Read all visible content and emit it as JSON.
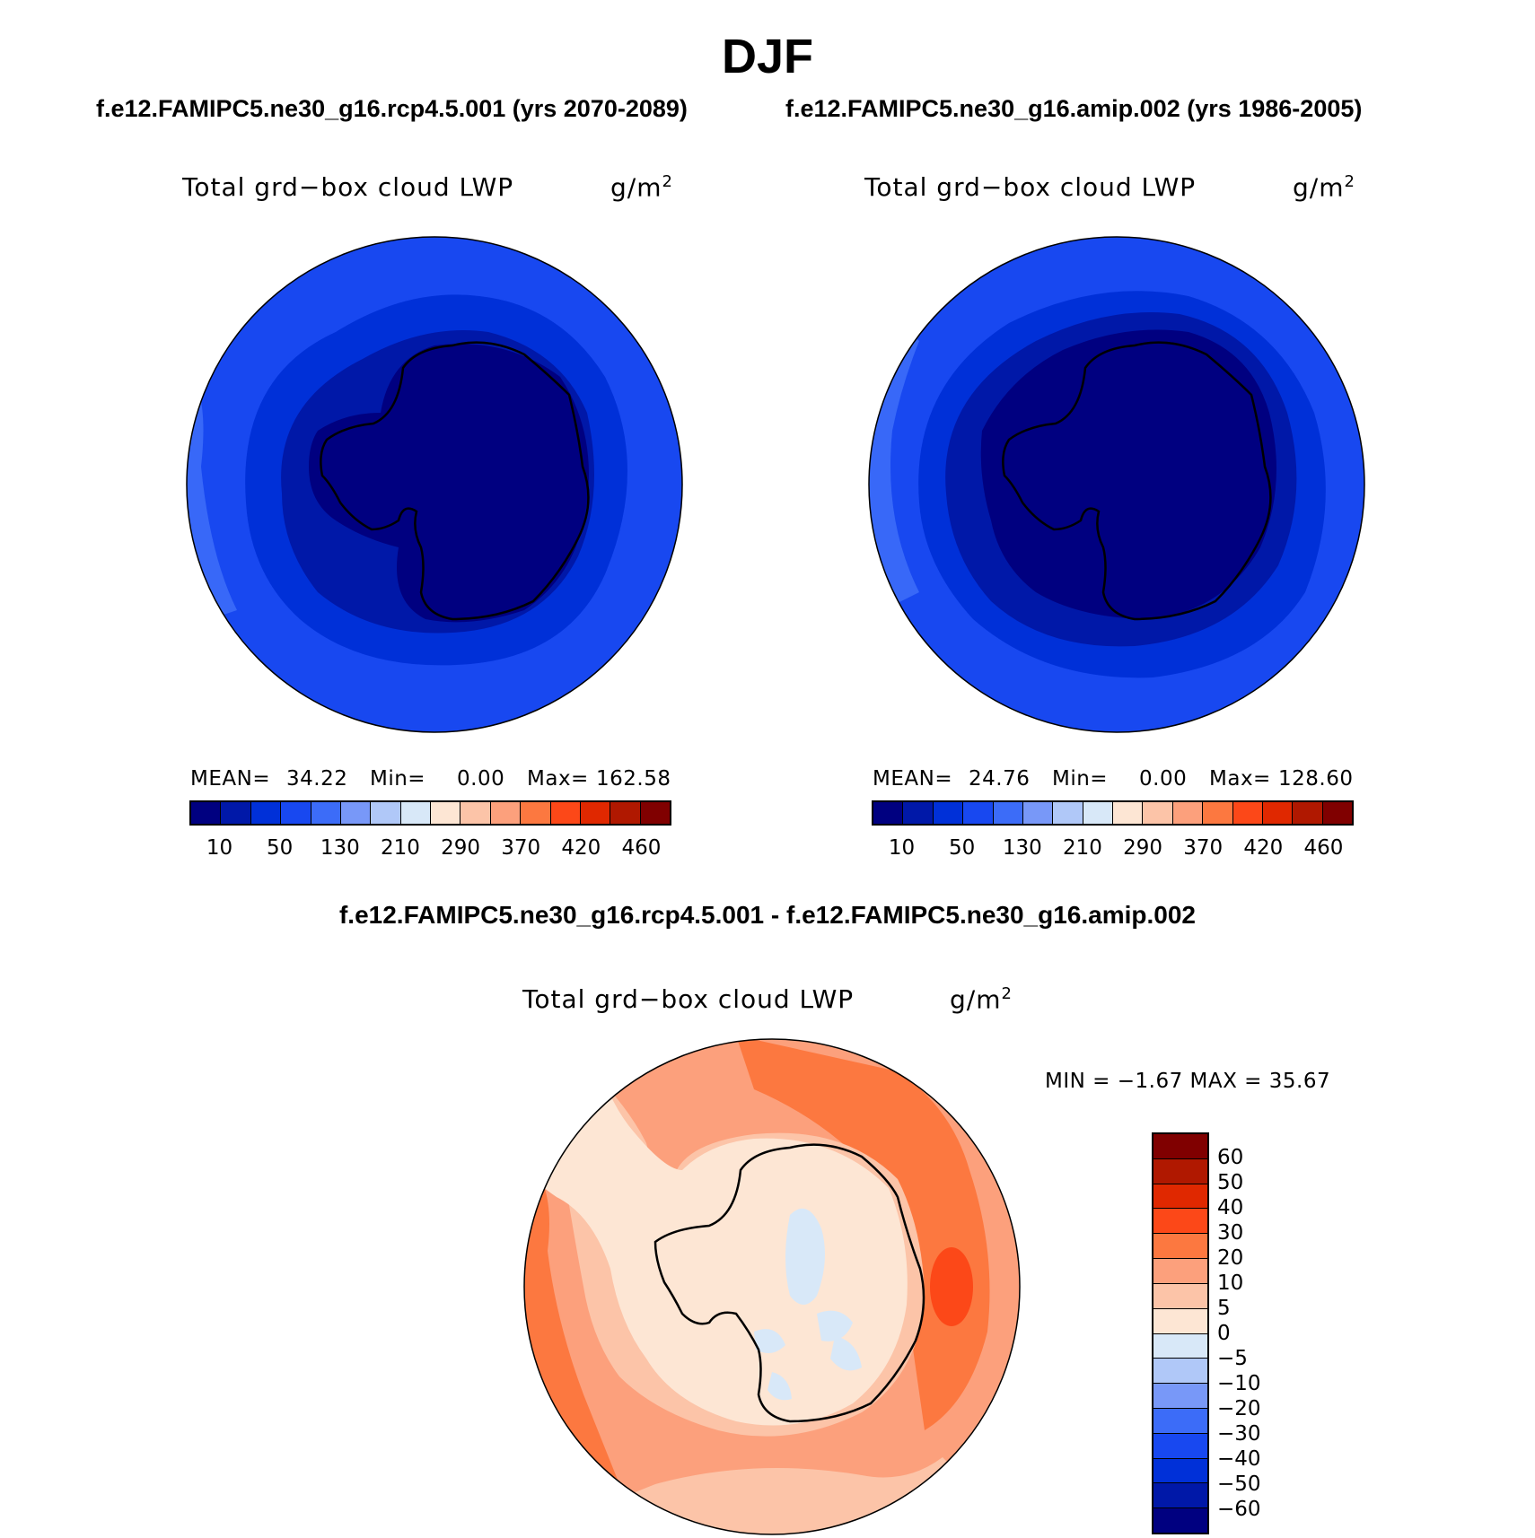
{
  "figure": {
    "title": "DJF",
    "case_left": "f.e12.FAMIPC5.ne30_g16.rcp4.5.001 (yrs 2070-2089)",
    "case_right": "f.e12.FAMIPC5.ne30_g16.amip.002 (yrs 1986-2005)",
    "diff_title": "f.e12.FAMIPC5.ne30_g16.rcp4.5.001 - f.e12.FAMIPC5.ne30_g16.amip.002"
  },
  "panels": [
    {
      "variable": "Total grd−box cloud LWP",
      "units": "g/m",
      "units_sup": "2",
      "mean_label": "MEAN=",
      "mean": "34.22",
      "min_label": "Min=",
      "min": "0.00",
      "max_label": "Max=",
      "max": "162.58"
    },
    {
      "variable": "Total grd−box cloud LWP",
      "units": "g/m",
      "units_sup": "2",
      "mean_label": "MEAN=",
      "mean": "24.76",
      "min_label": "Min=",
      "min": "0.00",
      "max_label": "Max=",
      "max": "128.60"
    }
  ],
  "diff_panel": {
    "variable": "Total grd−box cloud LWP",
    "units": "g/m",
    "units_sup": "2",
    "minmax": "MIN =   −1.67 MAX =   35.67"
  },
  "colorbar_abs": {
    "colors": [
      "#000080",
      "#0018a8",
      "#0030d8",
      "#1848f0",
      "#3c6cf8",
      "#7898f8",
      "#b0c8f8",
      "#d8e8f8",
      "#fde6d4",
      "#fcc4a8",
      "#fca07c",
      "#fc7840",
      "#fc4818",
      "#e02800",
      "#b01800",
      "#800000"
    ],
    "labels": [
      "10",
      "50",
      "130",
      "210",
      "290",
      "370",
      "420",
      "460"
    ]
  },
  "colorbar_diff": {
    "colors": [
      "#800000",
      "#b01800",
      "#e02800",
      "#fc4818",
      "#fc7840",
      "#fca07c",
      "#fcc4a8",
      "#fde6d4",
      "#d8e8f8",
      "#b0c8f8",
      "#7898f8",
      "#3c6cf8",
      "#1848f0",
      "#0030d8",
      "#0018a8",
      "#000080"
    ],
    "labels": [
      "60",
      "50",
      "40",
      "30",
      "20",
      "10",
      "5",
      "0",
      "−5",
      "−10",
      "−20",
      "−30",
      "−40",
      "−50",
      "−60"
    ]
  },
  "map_colors": {
    "outer_abs": "#1848f0",
    "ring2_abs": "#0030d8",
    "ring3_abs": "#0018a8",
    "inner_abs": "#000080",
    "edge_abs": "#3c6cf8",
    "diff_bg": "#fca07c",
    "diff_ring": "#fcc4a8",
    "diff_inner": "#fde6d4",
    "diff_hot": "#fc7840",
    "diff_max": "#fc4818",
    "diff_neg": "#d8e8f8"
  }
}
